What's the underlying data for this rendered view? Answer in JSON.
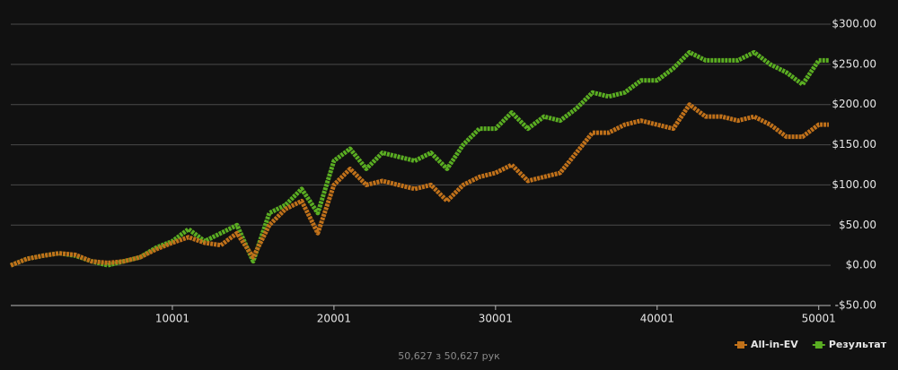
{
  "chart_data": {
    "type": "line",
    "x": [
      1,
      1001,
      2001,
      3001,
      4001,
      5001,
      6001,
      7001,
      8001,
      9001,
      10001,
      11001,
      12001,
      13001,
      14001,
      15001,
      16001,
      17001,
      18001,
      19001,
      20001,
      21001,
      22001,
      23001,
      24001,
      25001,
      26001,
      27001,
      28001,
      29001,
      30001,
      31001,
      32001,
      33001,
      34001,
      35001,
      36001,
      37001,
      38001,
      39001,
      40001,
      41001,
      42001,
      43001,
      44001,
      45001,
      46001,
      47001,
      48001,
      49001,
      50001,
      50627
    ],
    "series": [
      {
        "name": "All-in-EV",
        "color": "#c0711a",
        "values": [
          0,
          8,
          12,
          15,
          13,
          5,
          3,
          5,
          10,
          20,
          28,
          35,
          28,
          25,
          40,
          10,
          50,
          70,
          80,
          40,
          100,
          120,
          100,
          105,
          100,
          95,
          100,
          80,
          100,
          110,
          115,
          125,
          105,
          110,
          115,
          140,
          165,
          165,
          175,
          180,
          175,
          170,
          200,
          185,
          185,
          180,
          185,
          175,
          160,
          160,
          175,
          175
        ]
      },
      {
        "name": "Результат",
        "color": "#5aad22",
        "values": [
          0,
          8,
          12,
          15,
          12,
          5,
          0,
          5,
          10,
          22,
          30,
          45,
          30,
          40,
          50,
          5,
          65,
          75,
          95,
          65,
          130,
          145,
          120,
          140,
          135,
          130,
          140,
          120,
          150,
          170,
          170,
          190,
          170,
          185,
          180,
          195,
          215,
          210,
          215,
          230,
          230,
          245,
          265,
          255,
          255,
          255,
          265,
          250,
          240,
          225,
          255,
          255
        ]
      }
    ],
    "xlim": [
      1,
      50627
    ],
    "xticks": [
      10001,
      20001,
      30001,
      40001,
      50001
    ],
    "ylim": [
      -50,
      300
    ],
    "yticks": [
      {
        "value": -50,
        "label": "-$50.00"
      },
      {
        "value": 0,
        "label": "$0.00"
      },
      {
        "value": 50,
        "label": "$50.00"
      },
      {
        "value": 100,
        "label": "$100.00"
      },
      {
        "value": 150,
        "label": "$150.00"
      },
      {
        "value": 200,
        "label": "$200.00"
      },
      {
        "value": 250,
        "label": "$250.00"
      },
      {
        "value": 300,
        "label": "$300.00"
      }
    ],
    "grid": true,
    "footer": "50,627 з 50,627 рук"
  }
}
